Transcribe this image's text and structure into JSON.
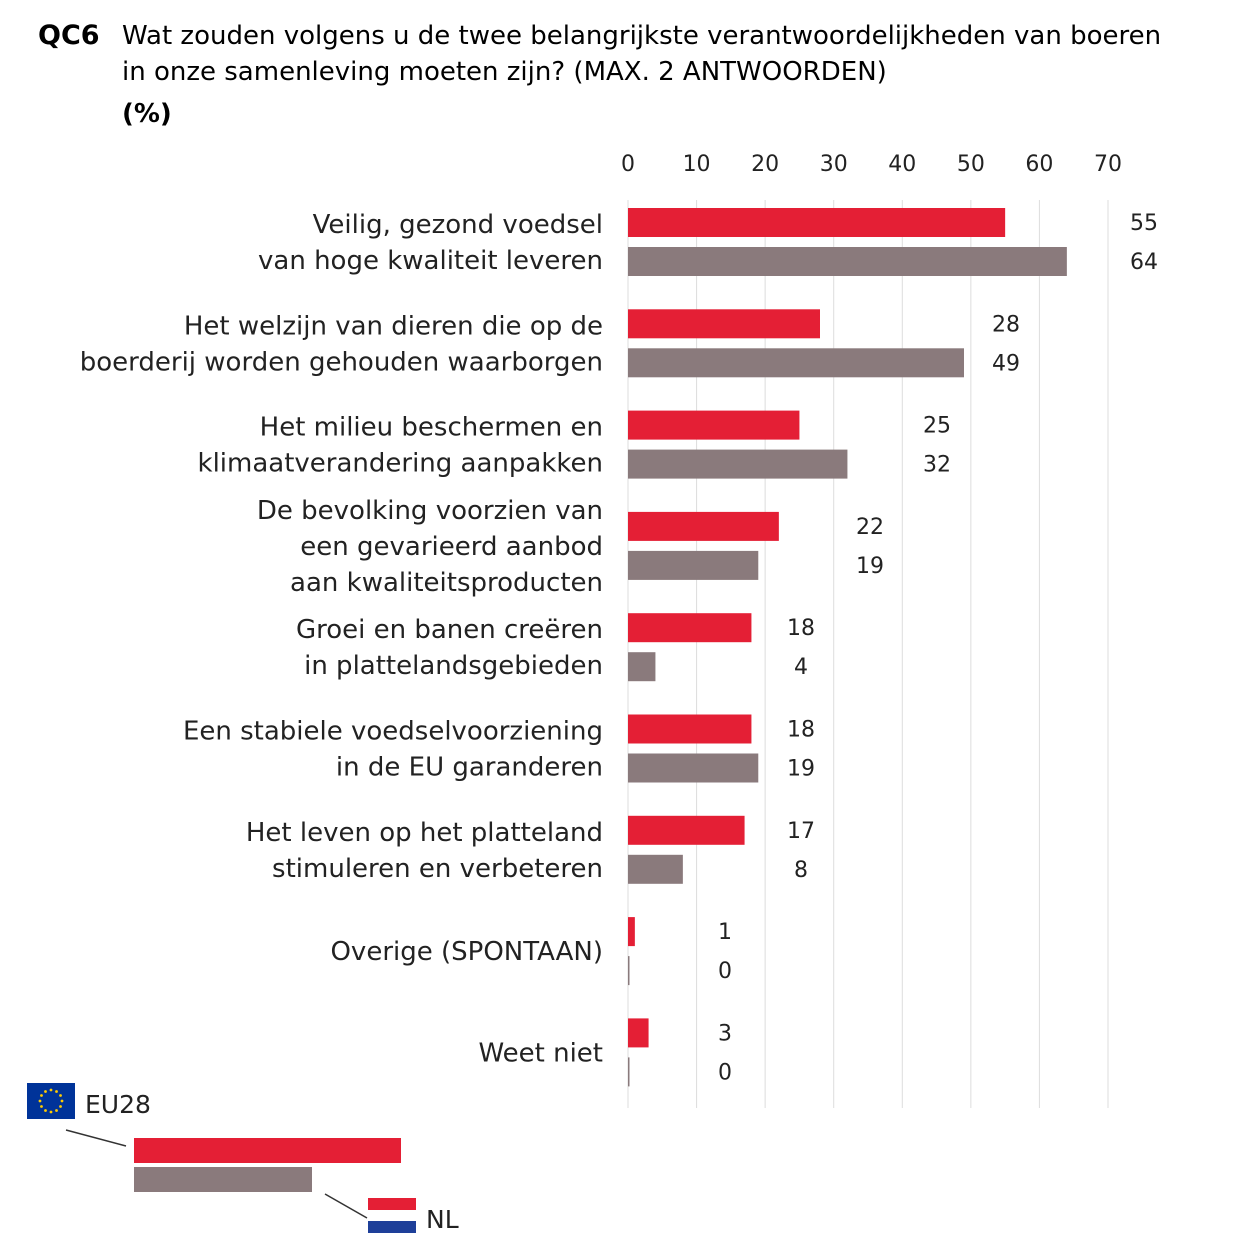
{
  "question": {
    "number": "QC6",
    "line1": "Wat zouden volgens u de twee belangrijkste verantwoordelijkheden van boeren",
    "line2": "in onze samenleving moeten zijn? (MAX. 2 ANTWOORDEN)",
    "unit": "(%)"
  },
  "colors": {
    "eu": "#e41f35",
    "nl": "#8a7a7c",
    "grid": "#dddddd"
  },
  "legend": {
    "eu_label": "EU28",
    "nl_label": "NL"
  },
  "chart_data": {
    "type": "bar",
    "orientation": "horizontal",
    "xlim": [
      0,
      70
    ],
    "ticks": [
      0,
      10,
      20,
      30,
      40,
      50,
      60,
      70
    ],
    "grid": true,
    "legend_position": "bottom-left",
    "categories": [
      [
        "Veilig, gezond voedsel",
        "van hoge kwaliteit leveren"
      ],
      [
        "Het welzijn van dieren die op de",
        "boerderij worden gehouden waarborgen"
      ],
      [
        "Het milieu beschermen en",
        "klimaatverandering aanpakken"
      ],
      [
        "De bevolking voorzien van",
        "een gevarieerd aanbod",
        "aan kwaliteitsproducten"
      ],
      [
        "Groei en banen creëren",
        "in plattelandsgebieden"
      ],
      [
        "Een stabiele voedselvoorziening",
        "in de EU garanderen"
      ],
      [
        "Het leven op het platteland",
        "stimuleren en verbeteren"
      ],
      [
        "Overige (SPONTAAN)"
      ],
      [
        "Weet niet"
      ]
    ],
    "series": [
      {
        "name": "EU28",
        "values": [
          55,
          28,
          25,
          22,
          18,
          18,
          17,
          1,
          3
        ]
      },
      {
        "name": "NL",
        "values": [
          64,
          49,
          32,
          19,
          4,
          19,
          8,
          0,
          0
        ]
      }
    ]
  }
}
